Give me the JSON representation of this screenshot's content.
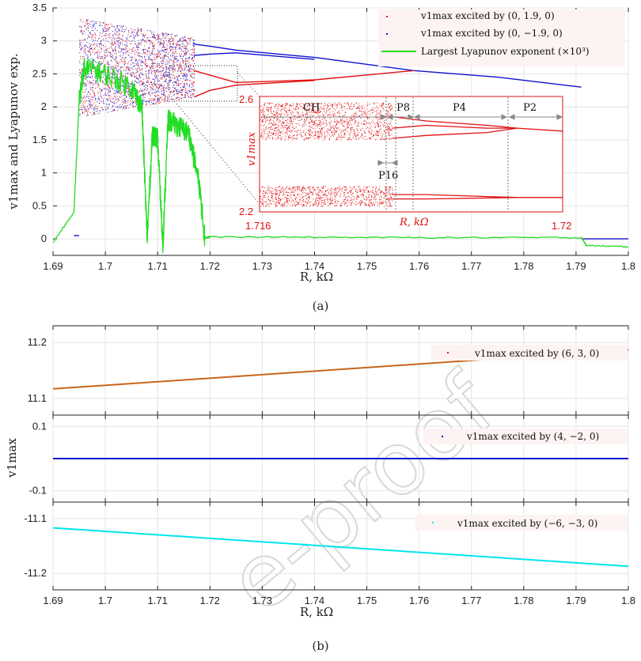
{
  "chart_data": [
    {
      "type": "scatter",
      "panel_label": "(a)",
      "xlabel": "R, kΩ",
      "ylabel": "v1max and Lyapunov exp.",
      "xlim": [
        1.69,
        1.8
      ],
      "ylim": [
        -0.25,
        3.5
      ],
      "xticks": [
        "1.69",
        "1.7",
        "1.71",
        "1.72",
        "1.73",
        "1.74",
        "1.75",
        "1.76",
        "1.77",
        "1.78",
        "1.79",
        "1.8"
      ],
      "yticks": [
        "0",
        "0.5",
        "1",
        "1.5",
        "2",
        "2.5",
        "3",
        "3.5"
      ],
      "grid": true,
      "legend_position": "top-right",
      "series": [
        {
          "name": "v1max excited by (0, 1.9, 0)",
          "color": "#e01010",
          "branches": [
            [
              1.725,
              2.83
            ],
            [
              1.725,
              2.36
            ],
            [
              1.759,
              2.55
            ],
            [
              1.791,
              2.3
            ]
          ]
        },
        {
          "name": "v1max excited by (0, −1.9, 0)",
          "color": "#1010d0",
          "branches": [
            [
              1.725,
              2.83
            ],
            [
              1.725,
              2.36
            ],
            [
              1.759,
              2.55
            ],
            [
              1.791,
              2.3
            ]
          ]
        },
        {
          "name": "Largest Lyapunov exponent (×10³)",
          "color": "#22dd22",
          "x": [
            1.69,
            1.694,
            1.695,
            1.696,
            1.7,
            1.705,
            1.707,
            1.708,
            1.709,
            1.71,
            1.711,
            1.712,
            1.714,
            1.716,
            1.718,
            1.719,
            1.72,
            1.76,
            1.791,
            1.792,
            1.8
          ],
          "y": [
            -0.05,
            0.4,
            2.1,
            2.6,
            2.5,
            2.3,
            2.0,
            0.0,
            1.6,
            1.5,
            -0.1,
            1.8,
            1.7,
            1.6,
            0.8,
            0.02,
            0.03,
            0.02,
            0.02,
            -0.1,
            -0.12
          ]
        }
      ],
      "inset": {
        "xlim": [
          1.716,
          1.72
        ],
        "ylim": [
          2.2,
          2.6
        ],
        "xticks": [
          "1.716",
          "1.72"
        ],
        "yticks": [
          "2.2",
          "2.6"
        ],
        "xlabel": "R, kΩ",
        "ylabel": "v1max",
        "regions": [
          "CH",
          "P8",
          "P4",
          "P2",
          "P16"
        ]
      }
    },
    {
      "type": "line",
      "panel_label": "(b)",
      "xlabel": "R, kΩ",
      "ylabel": "v1max",
      "xlim": [
        1.69,
        1.8
      ],
      "xticks": [
        "1.69",
        "1.7",
        "1.71",
        "1.72",
        "1.73",
        "1.74",
        "1.75",
        "1.76",
        "1.77",
        "1.78",
        "1.79",
        "1.8"
      ],
      "grid": true,
      "subplots": [
        {
          "name": "v1max excited by (6, 3, 0)",
          "color": "#c8651b",
          "ylim": [
            11.07,
            11.23
          ],
          "yticks": [
            "11.1",
            "11.2"
          ],
          "x": [
            1.69,
            1.8
          ],
          "y": [
            11.117,
            11.187
          ]
        },
        {
          "name": "v1max excited by (4, −2, 0)",
          "color": "#1010d0",
          "ylim": [
            -0.135,
            0.135
          ],
          "yticks": [
            "-0.1",
            "0.1"
          ],
          "x": [
            1.69,
            1.8
          ],
          "y": [
            0.0,
            0.0
          ]
        },
        {
          "name": "v1max excited by (−6, −3, 0)",
          "color": "#00e5ee",
          "ylim": [
            -11.23,
            -11.07
          ],
          "yticks": [
            "-11.1",
            "-11.2"
          ],
          "x": [
            1.69,
            1.8
          ],
          "y": [
            -11.117,
            -11.187
          ]
        }
      ]
    }
  ]
}
